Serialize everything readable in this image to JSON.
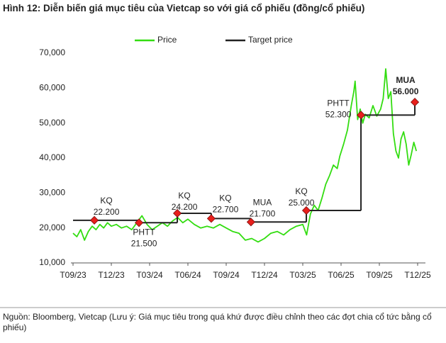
{
  "chart_data": {
    "type": "line",
    "title": "Hình 12: Diễn biến giá mục tiêu của Vietcap so với giá cổ phiếu (đồng/cổ phiếu)",
    "note": "Nguồn: Bloomberg, Vietcap (Lưu ý: Giá mục tiêu trong quá khứ được điều chỉnh theo các đợt chia cổ tức bằng cổ phiếu)",
    "xlim": [
      0,
      27.5
    ],
    "xticks": [
      {
        "value": 0,
        "label": "T09/23"
      },
      {
        "value": 3,
        "label": "T12/23"
      },
      {
        "value": 6,
        "label": "T03/24"
      },
      {
        "value": 9,
        "label": "T06/24"
      },
      {
        "value": 12,
        "label": "T09/24"
      },
      {
        "value": 15,
        "label": "T12/24"
      },
      {
        "value": 18,
        "label": "T03/25"
      },
      {
        "value": 21,
        "label": "T06/25"
      },
      {
        "value": 24,
        "label": "T09/25"
      },
      {
        "value": 27,
        "label": "T12/25"
      }
    ],
    "ylim": [
      10000,
      70000
    ],
    "yticks": [
      {
        "value": 10000,
        "label": "10,000"
      },
      {
        "value": 20000,
        "label": "20,000"
      },
      {
        "value": 30000,
        "label": "30,000"
      },
      {
        "value": 40000,
        "label": "40,000"
      },
      {
        "value": 50000,
        "label": "50,000"
      },
      {
        "value": 60000,
        "label": "60,000"
      },
      {
        "value": 70000,
        "label": "70,000"
      }
    ],
    "grid": false,
    "legend": "top",
    "series": [
      {
        "name": "Price",
        "color": "#33dd11",
        "step": false,
        "x": [
          0,
          0.3,
          0.6,
          0.9,
          1.2,
          1.5,
          1.8,
          2.1,
          2.4,
          2.7,
          3.0,
          3.4,
          3.8,
          4.2,
          4.6,
          5.0,
          5.4,
          5.8,
          6.2,
          6.6,
          7.0,
          7.4,
          7.8,
          8.2,
          8.6,
          9.0,
          9.5,
          10.0,
          10.5,
          11.0,
          11.5,
          12.0,
          12.5,
          13.0,
          13.5,
          14.0,
          14.5,
          15.0,
          15.5,
          16.0,
          16.5,
          17.0,
          17.5,
          18.0,
          18.3,
          18.6,
          18.9,
          19.2,
          19.5,
          19.8,
          20.1,
          20.4,
          20.7,
          20.9,
          21.2,
          21.5,
          21.8,
          22.0,
          22.1,
          22.3,
          22.5,
          22.7,
          22.9,
          23.2,
          23.5,
          23.8,
          24.1,
          24.3,
          24.5,
          24.7,
          24.9,
          25.1,
          25.3,
          25.5,
          25.7,
          25.9,
          26.1,
          26.3,
          26.5,
          26.7,
          26.9
        ],
        "values": [
          18500,
          17500,
          19500,
          16500,
          19000,
          20500,
          19500,
          21000,
          20000,
          21500,
          20500,
          21000,
          20000,
          20500,
          19500,
          21500,
          23500,
          21000,
          19500,
          20500,
          21500,
          20500,
          22000,
          23000,
          21500,
          22500,
          21000,
          20000,
          20500,
          20000,
          21000,
          20000,
          19000,
          18500,
          16500,
          17000,
          16000,
          17000,
          18500,
          19000,
          18000,
          19500,
          20500,
          21000,
          18000,
          24000,
          26500,
          25000,
          28500,
          32500,
          35000,
          38000,
          37000,
          40500,
          44000,
          48000,
          55000,
          59000,
          62000,
          51000,
          54000,
          50000,
          52500,
          51500,
          55000,
          52000,
          54000,
          57000,
          65500,
          57000,
          59000,
          47000,
          42000,
          40000,
          45500,
          47500,
          44000,
          38000,
          41000,
          44500,
          42000
        ]
      },
      {
        "name": "Target price",
        "color": "#222222",
        "step": true,
        "x": [
          0,
          1.67,
          5.17,
          8.17,
          10.83,
          13.94,
          18.28,
          22.56,
          26.78
        ],
        "values": [
          22200,
          22200,
          21500,
          24200,
          22700,
          21700,
          25000,
          52300,
          56000
        ]
      }
    ],
    "annotations": [
      {
        "label": "KQ",
        "value_label": "22.200",
        "x": 1.67,
        "value": 22200
      },
      {
        "label": "PHTT",
        "value_label": "21.500",
        "x": 5.17,
        "value": 21500
      },
      {
        "label": "KQ",
        "value_label": "24.200",
        "x": 8.17,
        "value": 24200
      },
      {
        "label": "KQ",
        "value_label": "22.700",
        "x": 10.83,
        "value": 22700
      },
      {
        "label": "MUA",
        "value_label": "21.700",
        "x": 13.94,
        "value": 21700
      },
      {
        "label": "KQ",
        "value_label": "25.000",
        "x": 18.28,
        "value": 25000
      },
      {
        "label": "PHTT",
        "value_label": "52.300",
        "x": 22.56,
        "value": 52300
      },
      {
        "label": "MUA",
        "value_label": "56.000",
        "x": 26.78,
        "value": 56000
      }
    ],
    "marker_color": "#e8201c"
  }
}
